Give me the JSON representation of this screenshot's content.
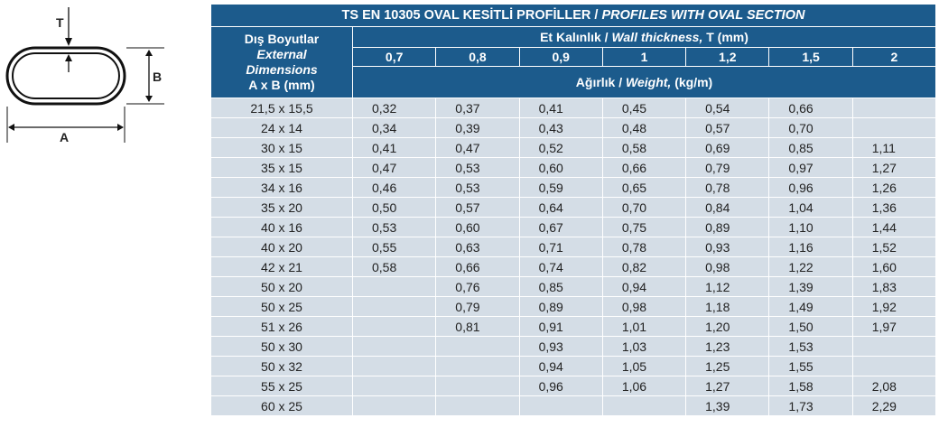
{
  "diagram": {
    "label_t": "T",
    "label_b": "B",
    "label_a": "A"
  },
  "table": {
    "title_prefix": "TS EN 10305  OVAL KESİTLİ PROFİLLER / ",
    "title_italic": "PROFILES WITH OVAL SECTION",
    "dims_header": {
      "line1": "Dış Boyutlar",
      "line2": "External",
      "line3": "Dimensions",
      "line4": "A x B (mm)"
    },
    "thickness_header": {
      "prefix": "Et Kalınlık / ",
      "italic": "Wall thickness,",
      "suffix": " T (mm)"
    },
    "thickness_values": [
      "0,7",
      "0,8",
      "0,9",
      "1",
      "1,2",
      "1,5",
      "2"
    ],
    "weight_header": {
      "prefix": "Ağırlık / ",
      "italic": "Weight,",
      "suffix": " (kg/m)"
    },
    "rows": [
      {
        "dim": "21,5 x 15,5",
        "w": [
          "0,32",
          "0,37",
          "0,41",
          "0,45",
          "0,54",
          "0,66",
          ""
        ]
      },
      {
        "dim": "24 x 14",
        "w": [
          "0,34",
          "0,39",
          "0,43",
          "0,48",
          "0,57",
          "0,70",
          ""
        ]
      },
      {
        "dim": "30 x 15",
        "w": [
          "0,41",
          "0,47",
          "0,52",
          "0,58",
          "0,69",
          "0,85",
          "1,11"
        ]
      },
      {
        "dim": "35 x 15",
        "w": [
          "0,47",
          "0,53",
          "0,60",
          "0,66",
          "0,79",
          "0,97",
          "1,27"
        ]
      },
      {
        "dim": "34 x 16",
        "w": [
          "0,46",
          "0,53",
          "0,59",
          "0,65",
          "0,78",
          "0,96",
          "1,26"
        ]
      },
      {
        "dim": "35 x 20",
        "w": [
          "0,50",
          "0,57",
          "0,64",
          "0,70",
          "0,84",
          "1,04",
          "1,36"
        ]
      },
      {
        "dim": "40 x 16",
        "w": [
          "0,53",
          "0,60",
          "0,67",
          "0,75",
          "0,89",
          "1,10",
          "1,44"
        ]
      },
      {
        "dim": "40 x 20",
        "w": [
          "0,55",
          "0,63",
          "0,71",
          "0,78",
          "0,93",
          "1,16",
          "1,52"
        ]
      },
      {
        "dim": "42 x 21",
        "w": [
          "0,58",
          "0,66",
          "0,74",
          "0,82",
          "0,98",
          "1,22",
          "1,60"
        ]
      },
      {
        "dim": "50 x 20",
        "w": [
          "",
          "0,76",
          "0,85",
          "0,94",
          "1,12",
          "1,39",
          "1,83"
        ]
      },
      {
        "dim": "50 x 25",
        "w": [
          "",
          "0,79",
          "0,89",
          "0,98",
          "1,18",
          "1,49",
          "1,92"
        ]
      },
      {
        "dim": "51 x 26",
        "w": [
          "",
          "0,81",
          "0,91",
          "1,01",
          "1,20",
          "1,50",
          "1,97"
        ]
      },
      {
        "dim": "50 x 30",
        "w": [
          "",
          "",
          "0,93",
          "1,03",
          "1,23",
          "1,53",
          ""
        ]
      },
      {
        "dim": "50 x 32",
        "w": [
          "",
          "",
          "0,94",
          "1,05",
          "1,25",
          "1,55",
          ""
        ]
      },
      {
        "dim": "55 x 25",
        "w": [
          "",
          "",
          "0,96",
          "1,06",
          "1,27",
          "1,58",
          "2,08"
        ]
      },
      {
        "dim": "60 x 25",
        "w": [
          "",
          "",
          "",
          "",
          "1,39",
          "1,73",
          "2,29"
        ]
      }
    ]
  }
}
